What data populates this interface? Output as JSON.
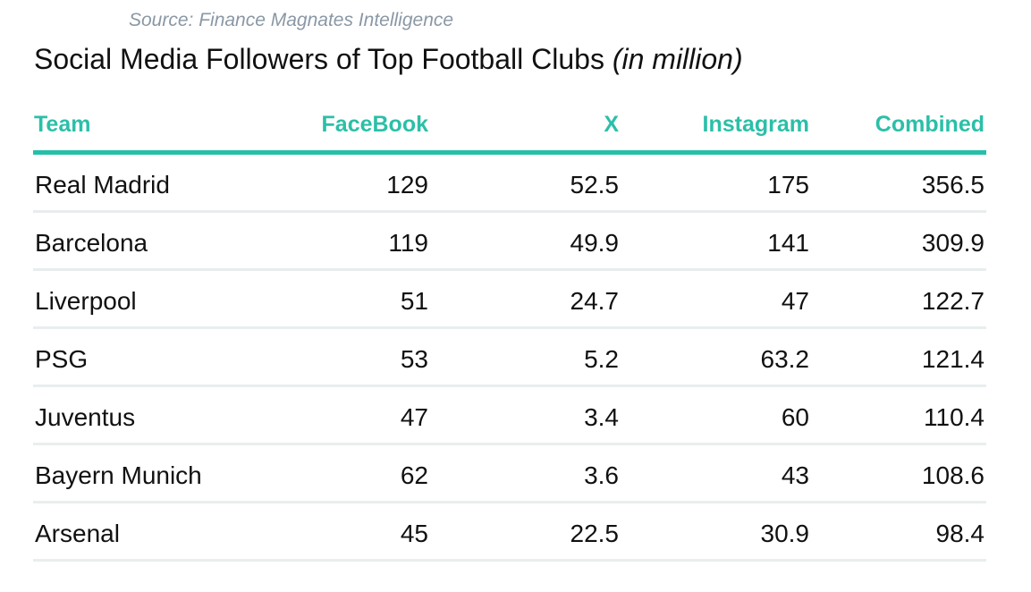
{
  "source": "Source: Finance Magnates Intelligence",
  "title": {
    "main": "Social Media Followers of Top Football Clubs",
    "unit": "(in million)"
  },
  "colors": {
    "accent": "#2bbfa8",
    "header_rule": "#26bfa8",
    "row_rule": "#e8eded",
    "source_text": "#8a98a5",
    "body_text": "#111111"
  },
  "chart_data": {
    "type": "table",
    "title": "Social Media Followers of Top Football Clubs (in million)",
    "source": "Source: Finance Magnates Intelligence",
    "columns": [
      "Team",
      "FaceBook",
      "X",
      "Instagram",
      "Combined"
    ],
    "rows": [
      [
        "Real Madrid",
        "129",
        "52.5",
        "175",
        "356.5"
      ],
      [
        "Barcelona",
        "119",
        "49.9",
        "141",
        "309.9"
      ],
      [
        "Liverpool",
        "51",
        "24.7",
        "47",
        "122.7"
      ],
      [
        "PSG",
        "53",
        "5.2",
        "63.2",
        "121.4"
      ],
      [
        "Juventus",
        "47",
        "3.4",
        "60",
        "110.4"
      ],
      [
        "Bayern Munich",
        "62",
        "3.6",
        "43",
        "108.6"
      ],
      [
        "Arsenal",
        "45",
        "22.5",
        "30.9",
        "98.4"
      ]
    ]
  }
}
